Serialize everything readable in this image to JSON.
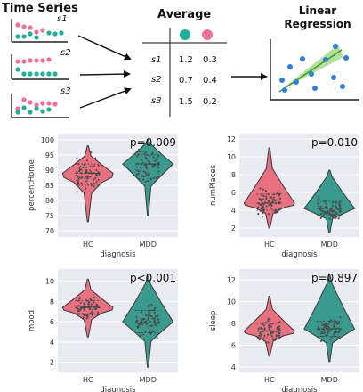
{
  "colors": {
    "teal": "#1fae9a",
    "pink": "#f0709a",
    "violin_pink": "#e8707f",
    "violin_teal": "#3a9a8d",
    "panel_bg": "#eaeaf2",
    "grid": "#ffffff",
    "dot": "#4a4a4a",
    "regression_dot": "#2f7fd6",
    "regression_line": "#5bbf3a"
  },
  "schematic": {
    "timeseries_title": "Time Series",
    "series_labels": [
      "s1",
      "s2",
      "s3"
    ],
    "average_title": "Average",
    "table": {
      "rows": [
        {
          "label": "s1",
          "teal": "1.2",
          "pink": "0.3"
        },
        {
          "label": "s2",
          "teal": "0.7",
          "pink": "0.4"
        },
        {
          "label": "s3",
          "teal": "1.5",
          "pink": "0.2"
        }
      ]
    },
    "regression_title_line1": "Linear",
    "regression_title_line2": "Regression"
  },
  "chart_data": [
    {
      "type": "violin",
      "categories": [
        "HC",
        "MDD"
      ],
      "xlabel": "diagnosis",
      "ylabel": "percentHome",
      "annotation": "p=0.009",
      "ylim": [
        68,
        102
      ],
      "yticks": [
        70,
        75,
        80,
        85,
        90,
        95,
        100
      ],
      "series": [
        {
          "category": "HC",
          "median": 89,
          "q1": 85,
          "q3": 92,
          "min": 73,
          "max": 98
        },
        {
          "category": "MDD",
          "median": 92,
          "q1": 88,
          "q3": 95,
          "min": 75,
          "max": 100
        }
      ]
    },
    {
      "type": "violin",
      "categories": [
        "HC",
        "MDD"
      ],
      "xlabel": "diagnosis",
      "ylabel": "numPlaces",
      "annotation": "p=0.010",
      "ylim": [
        1,
        12.6
      ],
      "yticks": [
        2,
        4,
        6,
        8,
        10,
        12
      ],
      "series": [
        {
          "category": "HC",
          "median": 4.8,
          "q1": 4.0,
          "q3": 5.8,
          "min": 2,
          "max": 11
        },
        {
          "category": "MDD",
          "median": 4.2,
          "q1": 3.5,
          "q3": 5.0,
          "min": 1.5,
          "max": 8.5
        }
      ]
    },
    {
      "type": "violin",
      "categories": [
        "HC",
        "MDD"
      ],
      "xlabel": "diagnosis",
      "ylabel": "mood",
      "annotation": "p<0.001",
      "ylim": [
        1,
        11.2
      ],
      "yticks": [
        2,
        4,
        6,
        8,
        10
      ],
      "series": [
        {
          "category": "HC",
          "median": 7.4,
          "q1": 6.8,
          "q3": 8.1,
          "min": 4.5,
          "max": 10.2
        },
        {
          "category": "MDD",
          "median": 6.0,
          "q1": 4.9,
          "q3": 7.1,
          "min": 1.5,
          "max": 10.5
        }
      ]
    },
    {
      "type": "violin",
      "categories": [
        "HC",
        "MDD"
      ],
      "xlabel": "diagnosis",
      "ylabel": "sleep",
      "annotation": "p=0.897",
      "ylim": [
        3.5,
        13
      ],
      "yticks": [
        4,
        6,
        8,
        10,
        12
      ],
      "series": [
        {
          "category": "HC",
          "median": 7.3,
          "q1": 6.7,
          "q3": 8.0,
          "min": 5.0,
          "max": 10.5
        },
        {
          "category": "MDD",
          "median": 7.5,
          "q1": 6.8,
          "q3": 8.2,
          "min": 4.5,
          "max": 12.5
        }
      ]
    }
  ]
}
